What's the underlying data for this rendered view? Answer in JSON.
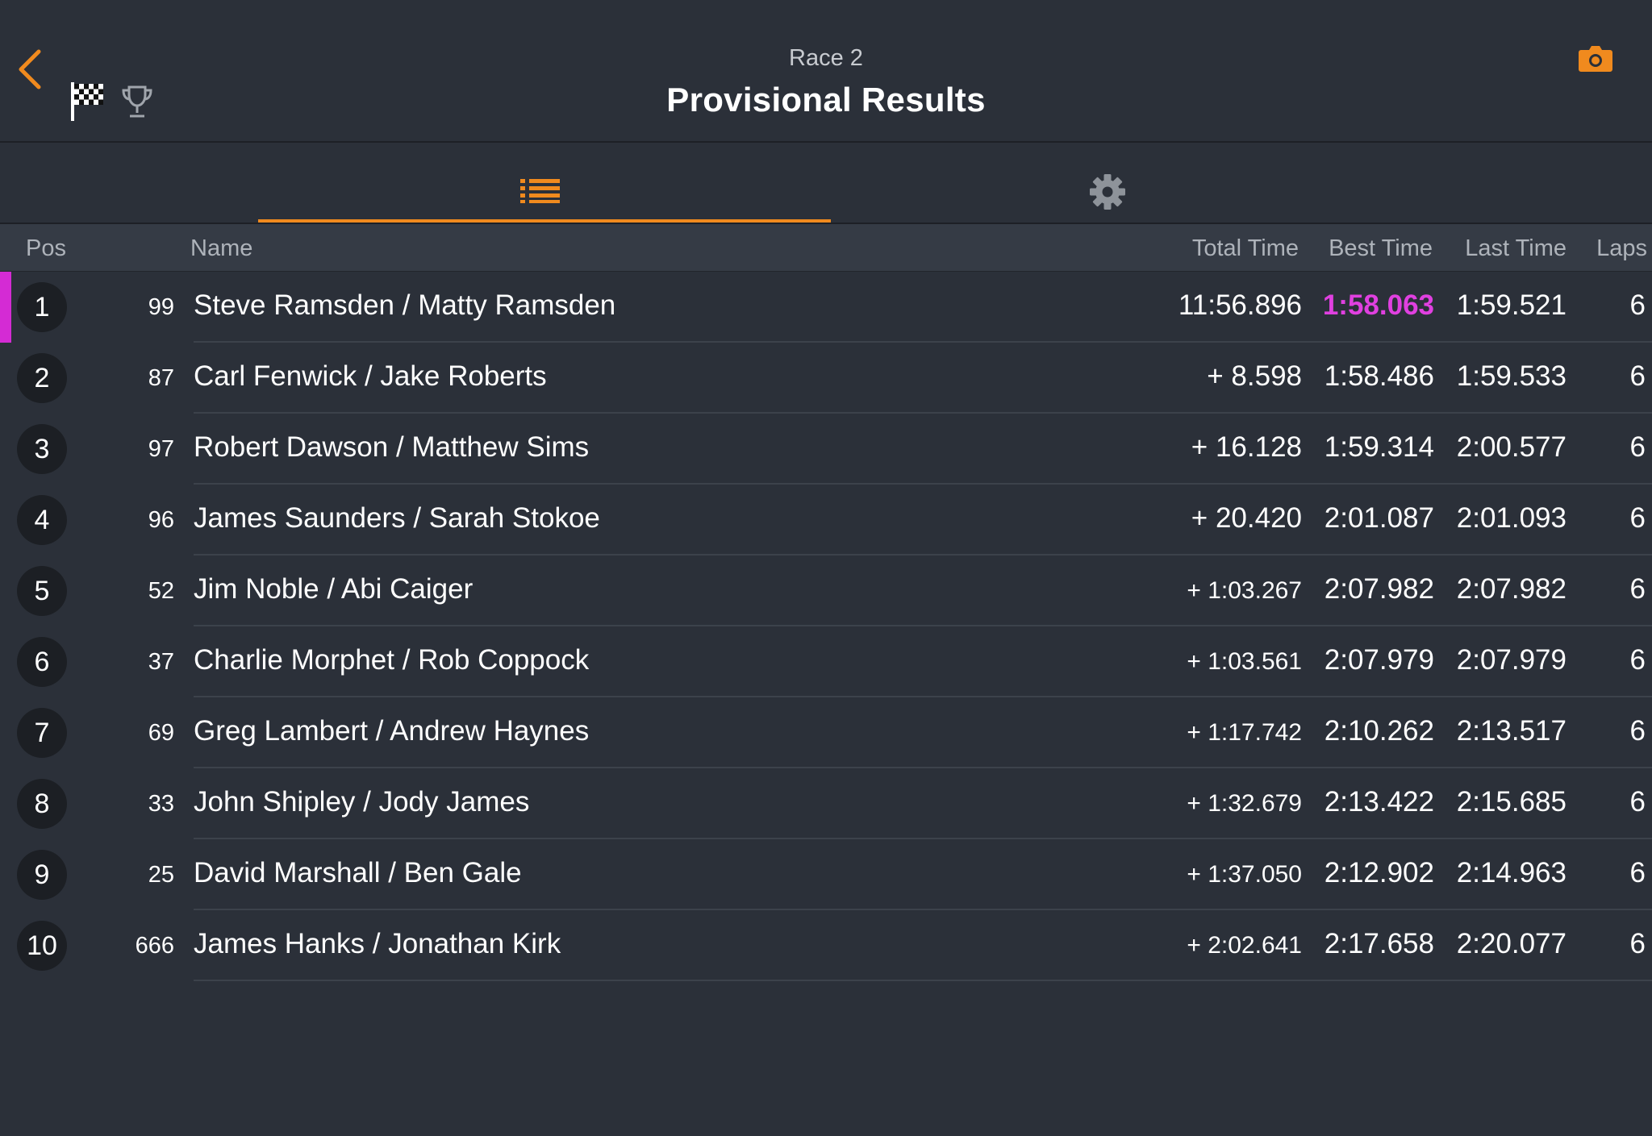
{
  "header": {
    "race_name": "Race 2",
    "title": "Provisional Results",
    "back_icon": "chevron-left-icon",
    "flag_icon": "checkered-flag-icon",
    "trophy_icon": "trophy-icon",
    "camera_icon": "camera-icon"
  },
  "tabs": [
    {
      "name": "results-list",
      "icon": "list-icon",
      "active": true
    },
    {
      "name": "settings",
      "icon": "gear-icon",
      "active": false
    }
  ],
  "colors": {
    "accent": "#f08a1e",
    "fastest": "#e040e0",
    "leader_bar": "#d42bd4",
    "background": "#2b3039"
  },
  "columns": {
    "pos": "Pos",
    "name": "Name",
    "total": "Total Time",
    "best": "Best Time",
    "last": "Last Time",
    "laps": "Laps"
  },
  "rows": [
    {
      "pos": "1",
      "num": "99",
      "name": "Steve Ramsden / Matty Ramsden",
      "total": "11:56.896",
      "best": "1:58.063",
      "last": "1:59.521",
      "laps": "6"
    },
    {
      "pos": "2",
      "num": "87",
      "name": "Carl Fenwick / Jake Roberts",
      "total": "+ 8.598",
      "best": "1:58.486",
      "last": "1:59.533",
      "laps": "6"
    },
    {
      "pos": "3",
      "num": "97",
      "name": "Robert Dawson / Matthew Sims",
      "total": "+ 16.128",
      "best": "1:59.314",
      "last": "2:00.577",
      "laps": "6"
    },
    {
      "pos": "4",
      "num": "96",
      "name": "James Saunders / Sarah Stokoe",
      "total": "+ 20.420",
      "best": "2:01.087",
      "last": "2:01.093",
      "laps": "6"
    },
    {
      "pos": "5",
      "num": "52",
      "name": "Jim Noble / Abi Caiger",
      "total": "+ 1:03.267",
      "best": "2:07.982",
      "last": "2:07.982",
      "laps": "6"
    },
    {
      "pos": "6",
      "num": "37",
      "name": "Charlie Morphet / Rob Coppock",
      "total": "+ 1:03.561",
      "best": "2:07.979",
      "last": "2:07.979",
      "laps": "6"
    },
    {
      "pos": "7",
      "num": "69",
      "name": "Greg Lambert / Andrew Haynes",
      "total": "+ 1:17.742",
      "best": "2:10.262",
      "last": "2:13.517",
      "laps": "6"
    },
    {
      "pos": "8",
      "num": "33",
      "name": "John Shipley / Jody James",
      "total": "+ 1:32.679",
      "best": "2:13.422",
      "last": "2:15.685",
      "laps": "6"
    },
    {
      "pos": "9",
      "num": "25",
      "name": "David Marshall / Ben Gale",
      "total": "+ 1:37.050",
      "best": "2:12.902",
      "last": "2:14.963",
      "laps": "6"
    },
    {
      "pos": "10",
      "num": "666",
      "name": "James Hanks / Jonathan Kirk",
      "total": "+ 2:02.641",
      "best": "2:17.658",
      "last": "2:20.077",
      "laps": "6"
    }
  ]
}
